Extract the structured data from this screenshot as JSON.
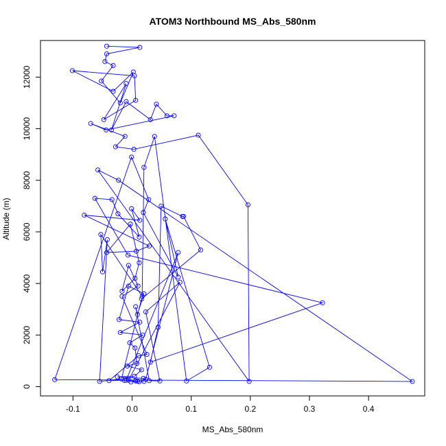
{
  "chart_data": {
    "type": "line",
    "title": "ATOM3 Northbound MS_Abs_580nm",
    "xlabel": "MS_Abs_580nm",
    "ylabel": "Altitude (m)",
    "xlim": [
      -0.155,
      0.495
    ],
    "ylim": [
      -360,
      13420
    ],
    "x_ticks": [
      -0.1,
      0.0,
      0.1,
      0.2,
      0.3,
      0.4
    ],
    "x_tick_labels": [
      "-0.1",
      "0.0",
      "0.1",
      "0.2",
      "0.3",
      "0.4"
    ],
    "y_ticks": [
      0,
      2000,
      4000,
      6000,
      8000,
      10000,
      12000
    ],
    "y_tick_labels": [
      "0",
      "2000",
      "4000",
      "6000",
      "8000",
      "10000",
      "12000"
    ],
    "grid": false,
    "legend": "none",
    "series": [
      {
        "color": "#0000ff",
        "marker": "open-circle",
        "x": [
          -0.043,
          0.013,
          -0.043,
          -0.046,
          -0.032,
          -0.052,
          -0.02,
          0.002,
          -0.032,
          -0.101,
          0.004,
          0.006,
          -0.048,
          -0.01,
          -0.035,
          -0.01,
          0.031,
          0.041,
          0.059,
          0.071,
          -0.044,
          -0.07,
          -0.012,
          -0.028,
          0.003,
          0.112,
          0.196,
          0.198,
          -0.058,
          -0.023,
          0.474,
          -0.131,
          -0.001,
          0.028,
          0.019,
          0.078,
          0.056,
          0.131,
          0.092,
          0.038,
          0.02,
          0.017,
          -0.053,
          -0.05,
          -0.042,
          -0.055,
          -0.018,
          0.016,
          0.116,
          0.087,
          0.085,
          0.049,
          0.044,
          0.031,
          0.322,
          -0.007,
          -0.063,
          -0.034,
          -0.024,
          0.012,
          -0.001,
          0.013,
          -0.081,
          0.029,
          0.007,
          -0.043,
          -0.003,
          0.012,
          0.005,
          -0.017,
          -0.006,
          0.01,
          -0.017,
          0.025,
          0.011,
          -0.039,
          -0.006,
          0.081,
          0.023,
          0.047,
          0.029,
          0.006,
          0.009,
          0.02,
          -0.006,
          -0.022,
          0.013,
          -0.02,
          0.018,
          -0.004,
          0.005,
          0.008,
          -0.008,
          0.016,
          0.004,
          -0.025,
          0.019,
          0.023,
          0.078,
          -0.01,
          -0.013,
          0.006,
          0.009,
          0.012,
          -0.002,
          0.02
        ],
        "y": [
          13200,
          13150,
          12900,
          12600,
          12450,
          11850,
          11000,
          12200,
          11450,
          12250,
          12050,
          11100,
          10350,
          11750,
          9950,
          11050,
          10350,
          10950,
          10500,
          10500,
          9950,
          10200,
          9700,
          9300,
          9200,
          9750,
          7050,
          200,
          8400,
          8000,
          200,
          270,
          8900,
          7250,
          6750,
          4250,
          6500,
          750,
          220,
          9700,
          8500,
          3500,
          5900,
          4450,
          5700,
          200,
          300,
          3400,
          5300,
          6600,
          6600,
          7000,
          2300,
          950,
          3250,
          5100,
          7300,
          7250,
          6700,
          5800,
          6900,
          6450,
          6650,
          5450,
          5250,
          5200,
          6300,
          4800,
          4200,
          3700,
          4700,
          3900,
          3500,
          1250,
          1200,
          230,
          250,
          4050,
          2900,
          220,
          230,
          3100,
          2800,
          3600,
          3900,
          2600,
          2500,
          2100,
          2000,
          1700,
          1500,
          900,
          800,
          650,
          400,
          380,
          320,
          280,
          5200,
          250,
          240,
          220,
          210,
          190,
          180,
          200
        ]
      }
    ]
  }
}
